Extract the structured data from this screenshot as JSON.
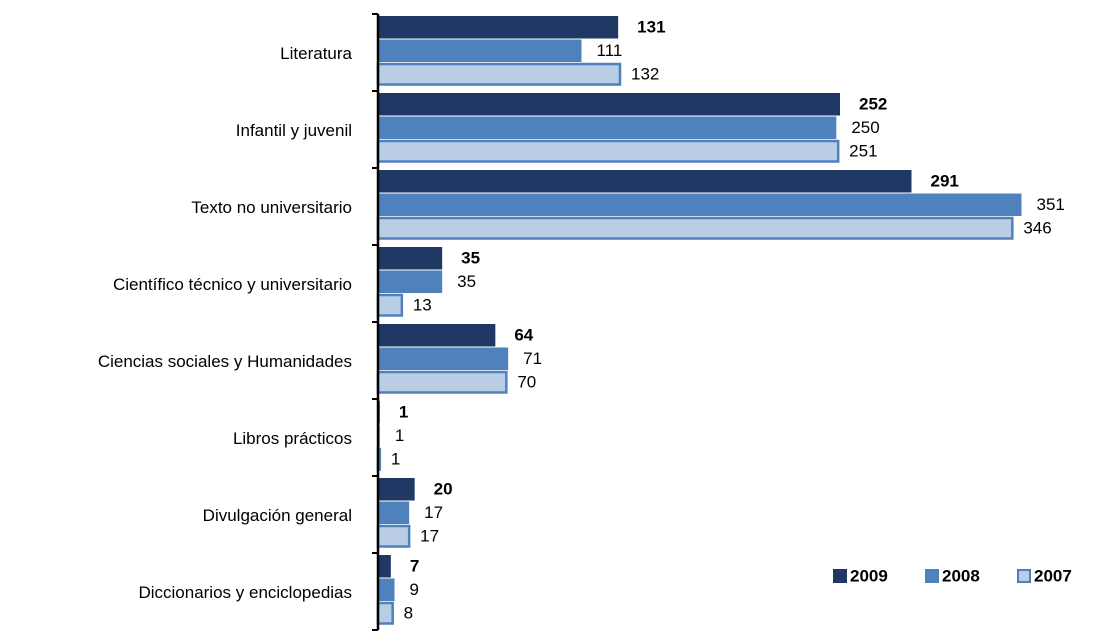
{
  "chart_data": {
    "type": "bar",
    "orientation": "horizontal",
    "categories": [
      "Literatura",
      "Infantil y juvenil",
      "Texto no universitario",
      "Científico técnico y universitario",
      "Ciencias sociales y Humanidades",
      "Libros prácticos",
      "Divulgación general",
      "Diccionarios y enciclopedias"
    ],
    "series": [
      {
        "name": "2009",
        "color": "#1f3864",
        "values": [
          131,
          252,
          291,
          35,
          64,
          1,
          20,
          7
        ]
      },
      {
        "name": "2008",
        "color": "#4f81bd",
        "values": [
          111,
          250,
          351,
          35,
          71,
          1,
          17,
          9
        ]
      },
      {
        "name": "2007",
        "color": "#b9cde5",
        "values": [
          132,
          251,
          346,
          13,
          70,
          1,
          17,
          8
        ]
      }
    ],
    "xlim": [
      0,
      360
    ],
    "legend": "bottom-right"
  }
}
